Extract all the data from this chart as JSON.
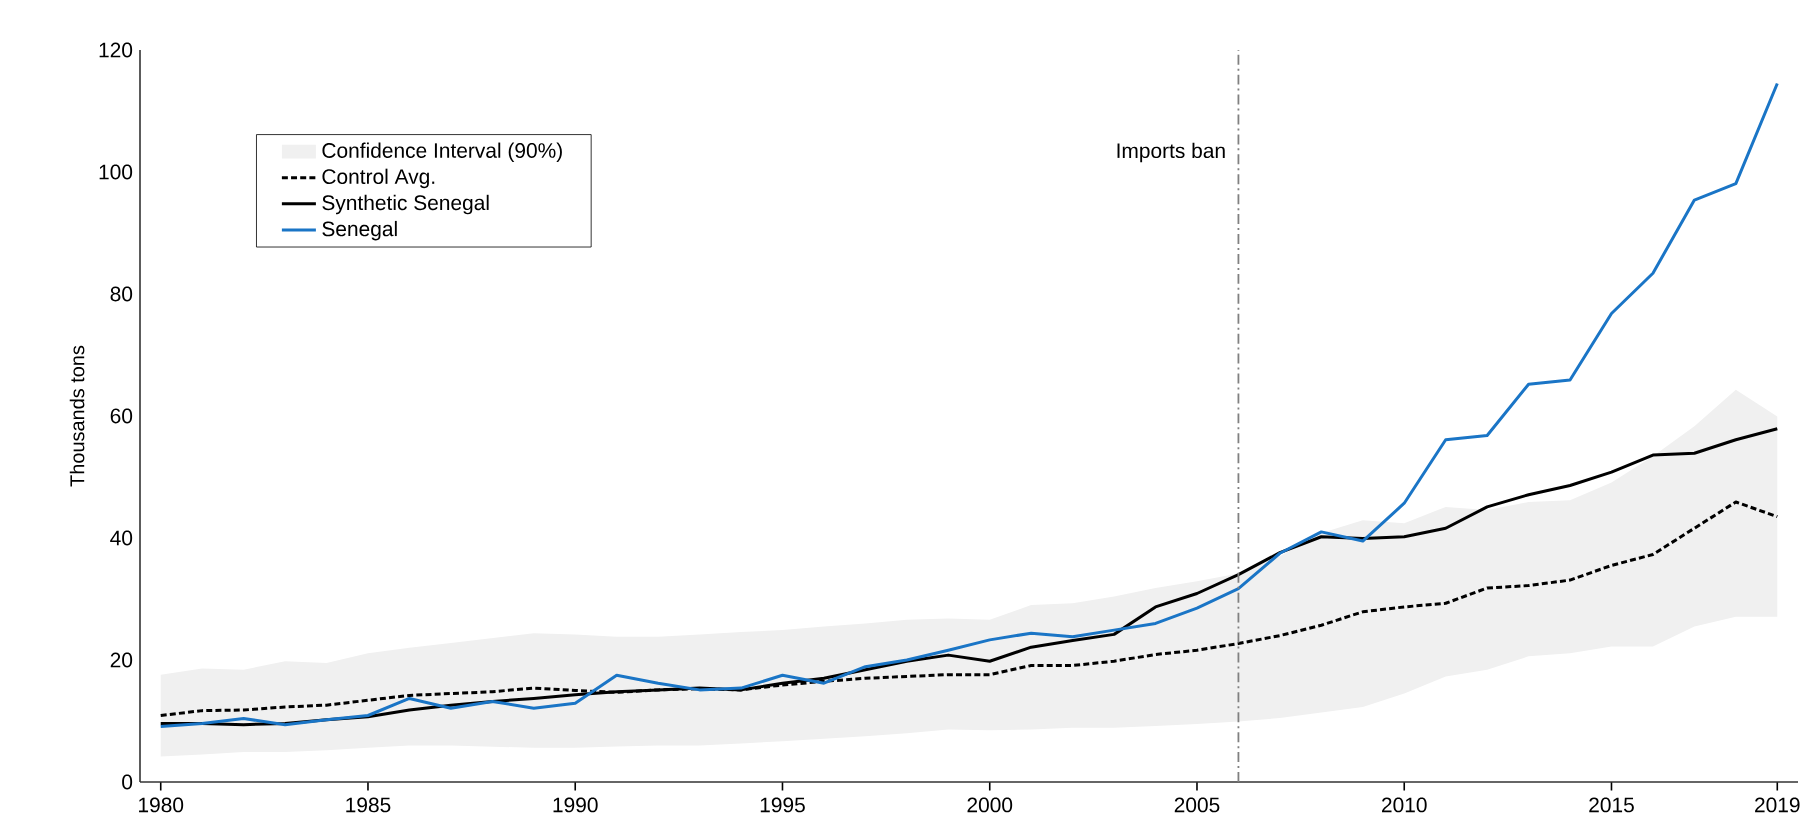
{
  "chart_data": {
    "type": "line",
    "ylabel": "Thousands tons",
    "x": [
      1980,
      1981,
      1982,
      1983,
      1984,
      1985,
      1986,
      1987,
      1988,
      1989,
      1990,
      1991,
      1992,
      1993,
      1994,
      1995,
      1996,
      1997,
      1998,
      1999,
      2000,
      2001,
      2002,
      2003,
      2004,
      2005,
      2006,
      2007,
      2008,
      2009,
      2010,
      2011,
      2012,
      2013,
      2014,
      2015,
      2016,
      2017,
      2018,
      2019
    ],
    "series": [
      {
        "name": "Confidence Interval (90%)",
        "type": "area",
        "color": "#f0f0f0",
        "lower": [
          4.2,
          4.5,
          4.9,
          4.9,
          5.2,
          5.6,
          6.0,
          6.0,
          5.8,
          5.6,
          5.6,
          5.8,
          6.0,
          6.0,
          6.3,
          6.7,
          7.1,
          7.5,
          8.0,
          8.6,
          8.5,
          8.6,
          8.9,
          8.9,
          9.2,
          9.5,
          9.9,
          10.5,
          11.4,
          12.3,
          14.5,
          17.3,
          18.4,
          20.6,
          21.1,
          22.2,
          22.2,
          25.5,
          27.1,
          27.1
        ],
        "values": [
          null,
          null,
          null,
          null,
          null,
          null,
          null,
          null,
          null,
          null,
          null,
          null,
          null,
          null,
          null,
          null,
          null,
          null,
          null,
          null,
          null,
          null,
          null,
          null,
          null,
          null,
          null,
          null,
          null,
          null,
          null,
          null,
          null,
          null,
          null,
          null,
          null,
          null,
          null,
          null
        ],
        "upper": [
          17.6,
          18.6,
          18.4,
          19.8,
          19.5,
          21.1,
          22.0,
          22.8,
          23.6,
          24.4,
          24.2,
          23.8,
          23.8,
          24.2,
          24.6,
          24.9,
          25.5,
          26.0,
          26.6,
          26.8,
          26.6,
          29.0,
          29.3,
          30.4,
          31.8,
          32.9,
          34.2,
          37.0,
          40.8,
          42.9,
          42.4,
          45.1,
          44.6,
          45.9,
          46.2,
          49.1,
          53.4,
          58.3,
          64.3,
          59.9
        ]
      },
      {
        "name": "Control Avg.",
        "color": "#000000",
        "line_style": "dashed",
        "values": [
          10.9,
          11.7,
          11.8,
          12.3,
          12.6,
          13.4,
          14.2,
          14.5,
          14.8,
          15.4,
          15.0,
          14.7,
          15.1,
          15.3,
          15.1,
          15.9,
          16.5,
          17.0,
          17.3,
          17.6,
          17.6,
          19.1,
          19.1,
          19.8,
          20.9,
          21.6,
          22.7,
          24.0,
          25.7,
          27.9,
          28.7,
          29.3,
          31.8,
          32.2,
          33.1,
          35.5,
          37.3,
          41.6,
          45.9,
          43.5
        ]
      },
      {
        "name": "Synthetic Senegal",
        "color": "#000000",
        "line_style": "solid",
        "values": [
          9.6,
          9.6,
          9.4,
          9.6,
          10.2,
          10.7,
          11.8,
          12.6,
          13.2,
          13.7,
          14.3,
          14.8,
          15.1,
          15.4,
          15.1,
          16.2,
          17.0,
          18.4,
          19.8,
          20.8,
          19.8,
          22.1,
          23.2,
          24.2,
          28.7,
          30.9,
          34.0,
          37.6,
          40.2,
          39.9,
          40.2,
          41.6,
          45.1,
          47.1,
          48.6,
          50.8,
          53.6,
          53.9,
          56.1,
          57.9
        ]
      },
      {
        "name": "Senegal",
        "color": "#1a75c6",
        "line_style": "solid",
        "values": [
          9.1,
          9.6,
          10.4,
          9.4,
          10.2,
          10.9,
          13.7,
          12.1,
          13.2,
          12.1,
          12.9,
          17.5,
          16.2,
          15.1,
          15.4,
          17.5,
          16.2,
          18.9,
          20.0,
          21.6,
          23.3,
          24.4,
          23.8,
          24.9,
          26.0,
          28.5,
          31.7,
          37.5,
          41.0,
          39.5,
          45.7,
          56.1,
          56.8,
          65.2,
          65.9,
          76.8,
          83.4,
          95.4,
          98.1,
          114.5
        ]
      }
    ],
    "xlim": [
      1979.5,
      2019.5
    ],
    "xticks": [
      1980,
      1985,
      1990,
      1995,
      2000,
      2005,
      2010,
      2015,
      2019
    ],
    "ylim": [
      0,
      120
    ],
    "yticks": [
      0,
      20,
      40,
      60,
      80,
      100,
      120
    ],
    "ref_lines": [
      {
        "axis": "x",
        "value": 2006,
        "label": "Imports ban",
        "color": "#808080",
        "line_style": "dashdot"
      }
    ],
    "legend": "top left"
  }
}
